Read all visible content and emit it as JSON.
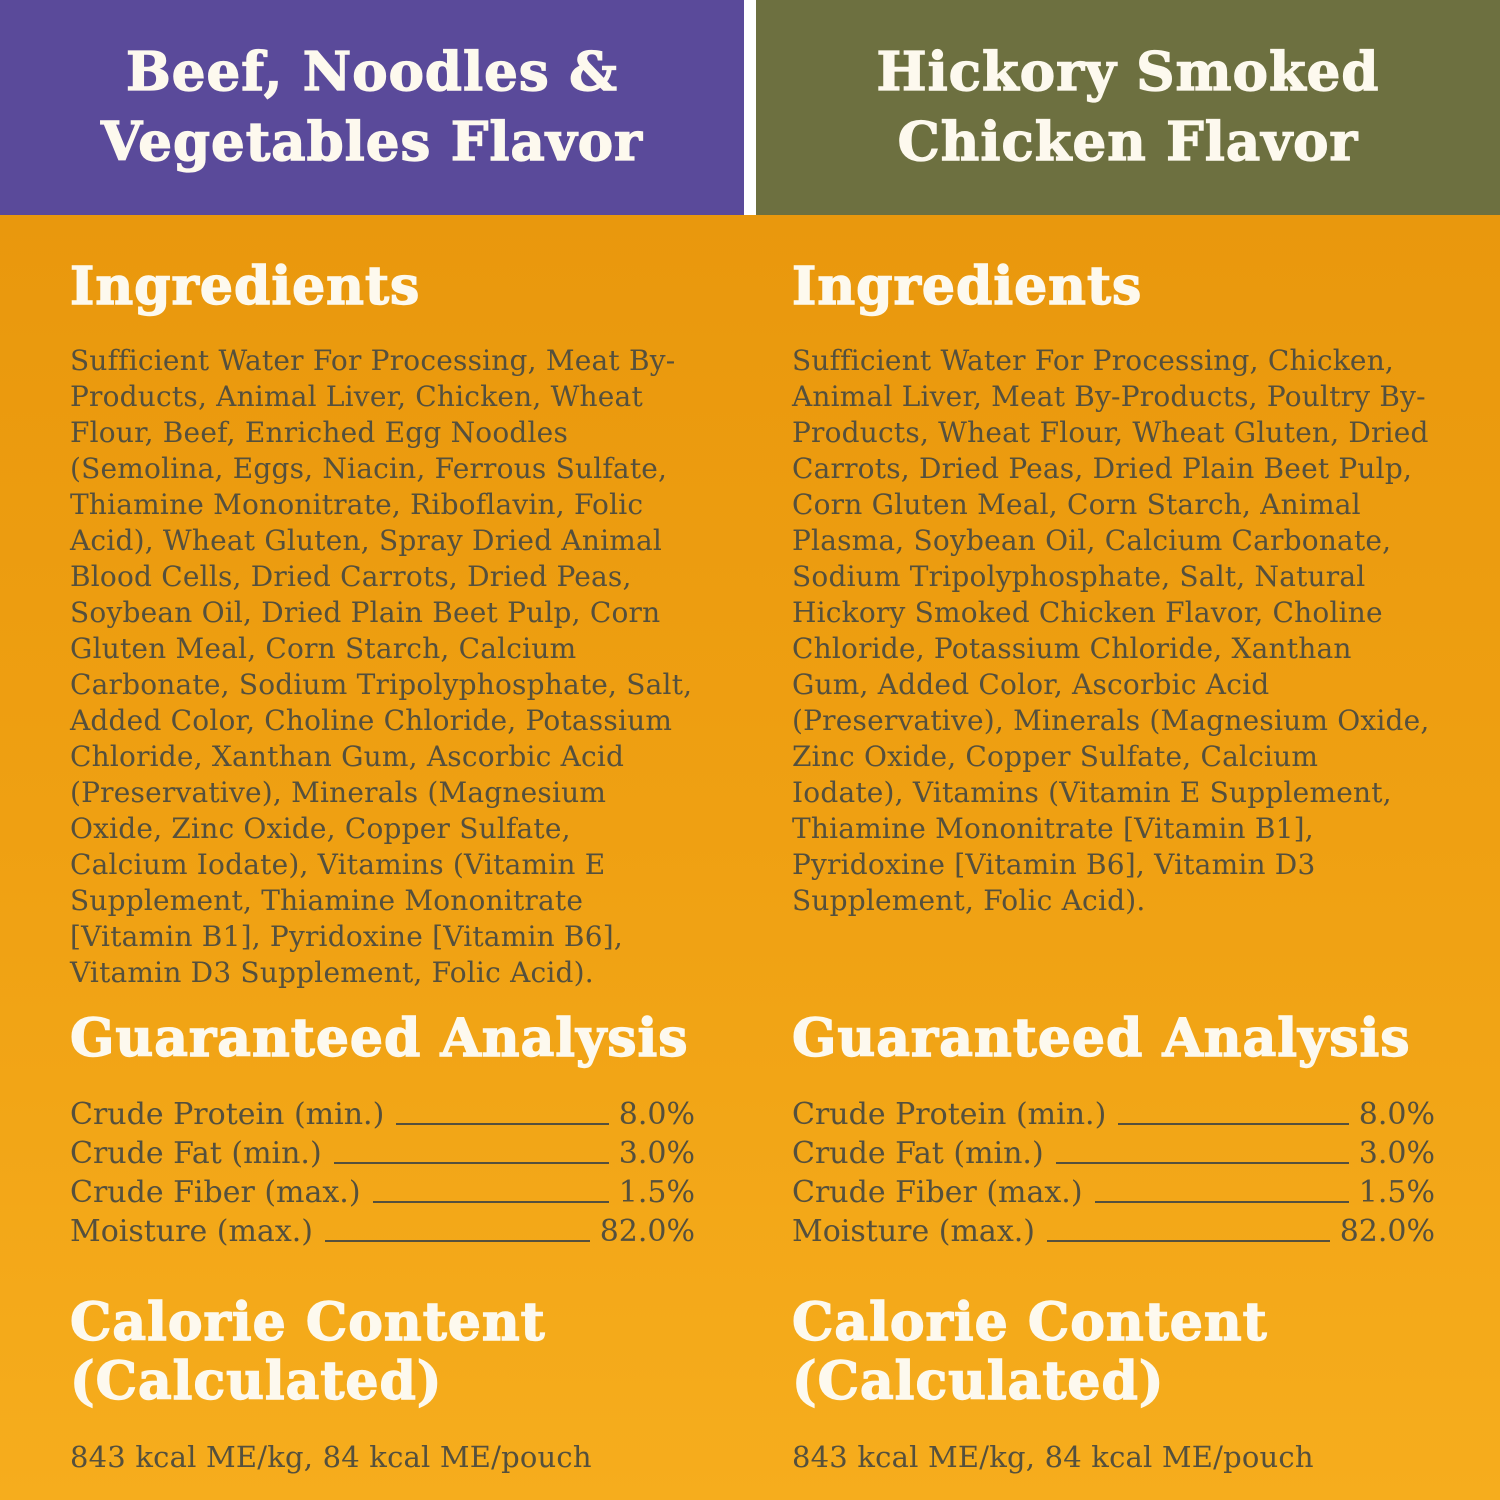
{
  "theme": {
    "purple": "#5a4a9a",
    "olive": "#6d7040",
    "bg_top": "#e7950b",
    "bg_bottom": "#f6ad1d",
    "heading_color": "#fdf9ee",
    "text_color": "#55503d"
  },
  "columns": [
    {
      "header_line1": "Beef, Noodles &",
      "header_line2": "Vegetables Flavor",
      "ingredients_heading": "Ingredients",
      "ingredients_text": "Sufficient Water For Processing, Meat By-Products, Animal Liver, Chicken, Wheat Flour, Beef,  Enriched Egg Noodles (Semolina, Eggs, Niacin, Ferrous Sulfate, Thiamine Mononitrate, Riboflavin, Folic Acid), Wheat Gluten, Spray Dried Animal Blood Cells, Dried Carrots, Dried Peas, Soybean Oil,  Dried Plain Beet Pulp, Corn Gluten Meal,  Corn Starch, Calcium Carbonate, Sodium Tripolyphosphate, Salt, Added Color, Choline Chloride, Potassium Chloride, Xanthan Gum, Ascorbic Acid (Preservative), Minerals (Magnesium Oxide, Zinc Oxide, Copper Sulfate, Calcium Iodate), Vitamins (Vitamin E Supplement, Thiamine Mononitrate [Vitamin B1], Pyridoxine [Vitamin B6], Vitamin D3 Supplement, Folic Acid).",
      "analysis_heading": "Guaranteed Analysis",
      "analysis_rows": [
        {
          "label": "Crude Protein (min.)",
          "value": "8.0%"
        },
        {
          "label": "Crude Fat (min.)",
          "value": "3.0%"
        },
        {
          "label": "Crude Fiber (max.)",
          "value": "1.5%"
        },
        {
          "label": "Moisture (max.)",
          "value": "82.0%"
        }
      ],
      "calorie_heading_line1": "Calorie Content",
      "calorie_heading_line2": "(Calculated)",
      "calorie_value": "843 kcal ME/kg, 84 kcal ME/pouch"
    },
    {
      "header_line1": "Hickory Smoked",
      "header_line2": "Chicken Flavor",
      "ingredients_heading": "Ingredients",
      "ingredients_text": "Sufficient Water For Processing, Chicken, Animal Liver, Meat By-Products, Poultry By-Products, Wheat Flour, Wheat Gluten, Dried Carrots, Dried Peas, Dried Plain Beet Pulp, Corn Gluten Meal, Corn Starch, Animal Plasma, Soybean Oil, Calcium Carbonate, Sodium Tripolyphosphate, Salt, Natural Hickory Smoked Chicken Flavor, Choline Chloride, Potassium Chloride, Xanthan Gum, Added Color, Ascorbic Acid (Preservative), Minerals (Magnesium Oxide, Zinc Oxide, Copper Sulfate, Calcium Iodate), Vitamins (Vitamin E Supplement, Thiamine Mononitrate [Vitamin B1], Pyridoxine [Vitamin B6], Vitamin D3 Supplement, Folic Acid).",
      "analysis_heading": "Guaranteed Analysis",
      "analysis_rows": [
        {
          "label": "Crude Protein (min.)",
          "value": "8.0%"
        },
        {
          "label": "Crude Fat (min.)",
          "value": "3.0%"
        },
        {
          "label": "Crude Fiber (max.)",
          "value": "1.5%"
        },
        {
          "label": "Moisture (max.)",
          "value": "82.0%"
        }
      ],
      "calorie_heading_line1": "Calorie Content",
      "calorie_heading_line2": "(Calculated)",
      "calorie_value": "843 kcal ME/kg, 84 kcal ME/pouch"
    }
  ]
}
